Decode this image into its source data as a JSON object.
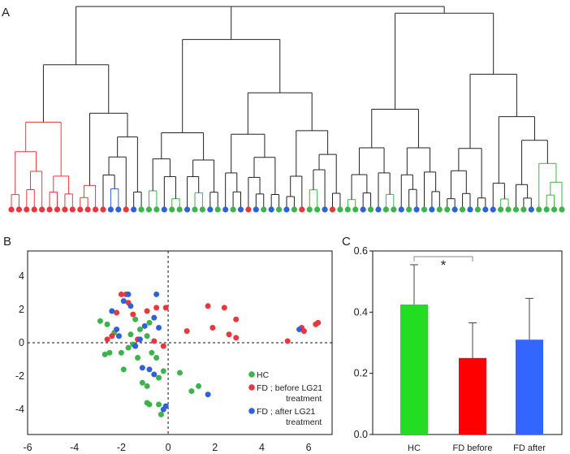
{
  "chart_data": [
    {
      "panel": "A",
      "type": "dendrogram",
      "title": "",
      "leaf_colors": {
        "HC": "#3cb44b",
        "FD_before": "#e8383d",
        "FD_after": "#2f62d9"
      },
      "leaves": [
        "FD_before",
        "FD_before",
        "FD_before",
        "FD_before",
        "FD_before",
        "FD_before",
        "FD_before",
        "FD_before",
        "FD_before",
        "FD_before",
        "FD_before",
        "FD_before",
        "FD_before",
        "FD_after",
        "FD_after",
        "FD_before",
        "FD_after",
        "HC",
        "HC",
        "HC",
        "FD_after",
        "HC",
        "HC",
        "FD_after",
        "HC",
        "HC",
        "FD_after",
        "HC",
        "FD_after",
        "HC",
        "FD_after",
        "FD_before",
        "FD_after",
        "HC",
        "FD_after",
        "HC",
        "FD_after",
        "HC",
        "FD_before",
        "HC",
        "HC",
        "FD_after",
        "FD_before",
        "HC",
        "HC",
        "HC",
        "FD_after",
        "HC",
        "FD_after",
        "HC",
        "HC",
        "FD_after",
        "HC",
        "FD_after",
        "HC",
        "FD_after",
        "HC",
        "HC",
        "FD_after",
        "HC",
        "FD_after",
        "HC",
        "FD_after",
        "FD_after",
        "HC",
        "HC",
        "HC",
        "HC",
        "FD_after",
        "HC",
        "HC",
        "HC",
        "HC"
      ]
    },
    {
      "panel": "B",
      "type": "scatter",
      "title": "",
      "xlabel": "",
      "ylabel": "",
      "xlim": [
        -6,
        7
      ],
      "ylim": [
        -5.5,
        5.5
      ],
      "xticks": [
        -6,
        -4,
        -2,
        0,
        2,
        4,
        6
      ],
      "yticks": [
        -4,
        -2,
        0,
        2,
        4
      ],
      "series": [
        {
          "name": "HC",
          "legend": "HC",
          "color": "#3cb44b",
          "points": [
            [
              -2.9,
              1.3
            ],
            [
              -2.6,
              1.1
            ],
            [
              -2.7,
              -0.7
            ],
            [
              -2.5,
              -0.6
            ],
            [
              -2.3,
              0.6
            ],
            [
              -2.0,
              -0.6
            ],
            [
              -1.9,
              -1.6
            ],
            [
              -1.7,
              -0.3
            ],
            [
              -1.6,
              0.5
            ],
            [
              -1.5,
              -0.1
            ],
            [
              -1.4,
              1.4
            ],
            [
              -1.2,
              0.8
            ],
            [
              -1.3,
              -0.9
            ],
            [
              -0.9,
              0.4
            ],
            [
              -0.8,
              1.2
            ],
            [
              -0.7,
              -0.6
            ],
            [
              -0.5,
              -0.9
            ],
            [
              -0.9,
              -2.6
            ],
            [
              -0.4,
              -2.1
            ],
            [
              -0.2,
              -1.7
            ],
            [
              -0.9,
              -3.6
            ],
            [
              -0.8,
              -3.7
            ],
            [
              -0.4,
              -3.7
            ],
            [
              -0.3,
              -4.3
            ],
            [
              0.5,
              -1.8
            ],
            [
              1.0,
              -2.9
            ],
            [
              1.3,
              -2.6
            ],
            [
              -1.1,
              -2.4
            ]
          ],
          "legend_lines": [
            "HC"
          ]
        },
        {
          "name": "FD ; before LG21 treatment",
          "legend": "FD ; before LG21 treatment",
          "color": "#e8383d",
          "points": [
            [
              -2.6,
              0.2
            ],
            [
              -2.4,
              0.4
            ],
            [
              -2.2,
              1.8
            ],
            [
              -2.0,
              2.9
            ],
            [
              -1.8,
              2.9
            ],
            [
              -1.7,
              2.4
            ],
            [
              -1.5,
              1.7
            ],
            [
              -1.3,
              0.2
            ],
            [
              -0.9,
              1.9
            ],
            [
              -0.6,
              0.1
            ],
            [
              -0.5,
              2.1
            ],
            [
              -0.2,
              -0.2
            ],
            [
              -0.1,
              2.1
            ],
            [
              0.8,
              0.7
            ],
            [
              1.7,
              2.2
            ],
            [
              1.9,
              0.9
            ],
            [
              2.4,
              2.1
            ],
            [
              2.6,
              0.5
            ],
            [
              2.9,
              1.4
            ],
            [
              2.9,
              0.3
            ],
            [
              5.1,
              0.1
            ],
            [
              5.7,
              0.9
            ],
            [
              5.8,
              0.7
            ],
            [
              6.3,
              1.1
            ],
            [
              6.4,
              1.2
            ]
          ],
          "legend_lines": [
            "FD ; before LG21",
            "treatment"
          ]
        },
        {
          "name": "FD ; after LG21 treatment",
          "legend": "FD ; after LG21 treatment",
          "color": "#2f62d9",
          "points": [
            [
              -2.4,
              1.9
            ],
            [
              -2.2,
              0.8
            ],
            [
              -2.1,
              0.4
            ],
            [
              -1.9,
              2.5
            ],
            [
              -1.7,
              2.9
            ],
            [
              -1.6,
              2.2
            ],
            [
              -1.4,
              -0.2
            ],
            [
              -1.2,
              0.2
            ],
            [
              -1.0,
              1.0
            ],
            [
              -1.1,
              -1.5
            ],
            [
              -0.8,
              -1.6
            ],
            [
              -0.6,
              1.5
            ],
            [
              -0.5,
              2.9
            ],
            [
              -0.4,
              0.9
            ],
            [
              -0.6,
              -1.9
            ],
            [
              -0.2,
              -4.0
            ],
            [
              -0.1,
              -3.8
            ],
            [
              1.7,
              -3.1
            ],
            [
              5.6,
              0.8
            ]
          ],
          "legend_lines": [
            "FD ; after LG21",
            "treatment"
          ]
        }
      ]
    },
    {
      "panel": "C",
      "type": "bar",
      "title": "",
      "xlabel": "",
      "ylabel": "",
      "categories": [
        "HC",
        "FD before",
        "FD after"
      ],
      "values": [
        0.425,
        0.25,
        0.31
      ],
      "errors": [
        0.13,
        0.115,
        0.135
      ],
      "colors": [
        "#22dd22",
        "#ff0000",
        "#3366ff"
      ],
      "ylim": [
        0,
        0.6
      ],
      "yticks": [
        "0.0",
        "0.2",
        "0.4",
        "0.6"
      ],
      "significance": {
        "from": "HC",
        "to": "FD before",
        "label": "*"
      }
    }
  ],
  "labels": {
    "panel_a": "A",
    "panel_b": "B",
    "panel_c": "C"
  }
}
